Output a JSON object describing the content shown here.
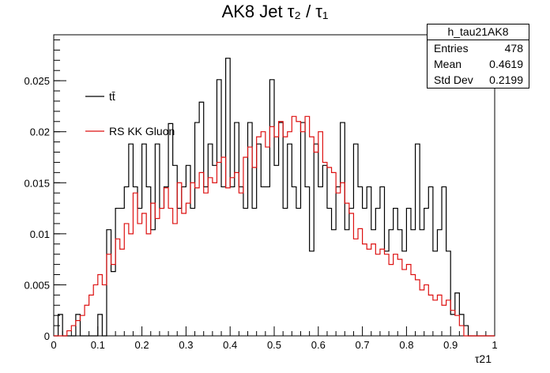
{
  "title": "AK8 Jet  τ₂ / τ₁",
  "stats": {
    "name": "h_tau21AK8",
    "rows": [
      {
        "key": "Entries",
        "value": "478"
      },
      {
        "key": "Mean",
        "value": "0.4619"
      },
      {
        "key": "Std Dev",
        "value": "0.2199"
      }
    ]
  },
  "chart_data": {
    "type": "line",
    "title": "AK8 Jet  τ₂ / τ₁",
    "xlabel": "τ21",
    "ylabel": "",
    "xlim": [
      0,
      1
    ],
    "ylim": [
      0,
      0.0295
    ],
    "xticks": [
      "0",
      "0.1",
      "0.2",
      "0.3",
      "0.4",
      "0.5",
      "0.6",
      "0.7",
      "0.8",
      "0.9",
      "1"
    ],
    "yticks": [
      "0",
      "0.005",
      "0.01",
      "0.015",
      "0.02",
      "0.025"
    ],
    "legend": "top-left",
    "series": [
      {
        "name": "tt̄",
        "color": "#000000",
        "x": [
          0.0,
          0.01,
          0.02,
          0.03,
          0.04,
          0.05,
          0.06,
          0.07,
          0.08,
          0.09,
          0.1,
          0.11,
          0.12,
          0.13,
          0.14,
          0.15,
          0.16,
          0.17,
          0.18,
          0.19,
          0.2,
          0.21,
          0.22,
          0.23,
          0.24,
          0.25,
          0.26,
          0.27,
          0.28,
          0.29,
          0.3,
          0.31,
          0.32,
          0.33,
          0.34,
          0.35,
          0.36,
          0.37,
          0.38,
          0.39,
          0.4,
          0.41,
          0.42,
          0.43,
          0.44,
          0.45,
          0.46,
          0.47,
          0.48,
          0.49,
          0.5,
          0.51,
          0.52,
          0.53,
          0.54,
          0.55,
          0.56,
          0.57,
          0.58,
          0.59,
          0.6,
          0.61,
          0.62,
          0.63,
          0.64,
          0.65,
          0.66,
          0.67,
          0.68,
          0.69,
          0.7,
          0.71,
          0.72,
          0.73,
          0.74,
          0.75,
          0.76,
          0.77,
          0.78,
          0.79,
          0.8,
          0.81,
          0.82,
          0.83,
          0.84,
          0.85,
          0.86,
          0.87,
          0.88,
          0.89,
          0.9,
          0.91,
          0.92,
          0.93,
          0.94,
          0.95,
          0.96,
          0.97,
          0.98,
          0.99
        ],
        "values": [
          0,
          0.0021,
          0,
          0,
          0,
          0.0021,
          0,
          0,
          0,
          0,
          0.0021,
          0.0,
          0.0104,
          0.0063,
          0.0125,
          0.0125,
          0.0146,
          0.0188,
          0.0146,
          0.0125,
          0.0188,
          0.0146,
          0.0104,
          0.0188,
          0.0125,
          0.0146,
          0.0208,
          0.0167,
          0.0125,
          0.0146,
          0.0167,
          0.0125,
          0.0209,
          0.0229,
          0.0146,
          0.0188,
          0.0167,
          0.0251,
          0.0146,
          0.0272,
          0.0146,
          0.0209,
          0.0146,
          0.0125,
          0.0209,
          0.0125,
          0.0188,
          0.0146,
          0.0146,
          0.0251,
          0.0167,
          0.0209,
          0.0125,
          0.0188,
          0.0146,
          0.0125,
          0.0209,
          0.0146,
          0.0083,
          0.0188,
          0.0146,
          0.0167,
          0.0125,
          0.0104,
          0.0146,
          0.0209,
          0.0104,
          0.0125,
          0.0188,
          0.0146,
          0.0125,
          0.0146,
          0.0104,
          0.0125,
          0.0146,
          0.0083,
          0.0104,
          0.0125,
          0.0104,
          0.0083,
          0.0125,
          0.0104,
          0.0188,
          0.0104,
          0.0125,
          0.0146,
          0.0083,
          0.0104,
          0.0146,
          0.0083,
          0.0021,
          0.0042,
          0.0021,
          0.001,
          0,
          0,
          0,
          0,
          0,
          0
        ]
      },
      {
        "name": "RS KK Gluon",
        "color": "#dd1111",
        "x": [
          0.0,
          0.01,
          0.02,
          0.03,
          0.04,
          0.05,
          0.06,
          0.07,
          0.08,
          0.09,
          0.1,
          0.11,
          0.12,
          0.13,
          0.14,
          0.15,
          0.16,
          0.17,
          0.18,
          0.19,
          0.2,
          0.21,
          0.22,
          0.23,
          0.24,
          0.25,
          0.26,
          0.27,
          0.28,
          0.29,
          0.3,
          0.31,
          0.32,
          0.33,
          0.34,
          0.35,
          0.36,
          0.37,
          0.38,
          0.39,
          0.4,
          0.41,
          0.42,
          0.43,
          0.44,
          0.45,
          0.46,
          0.47,
          0.48,
          0.49,
          0.5,
          0.51,
          0.52,
          0.53,
          0.54,
          0.55,
          0.56,
          0.57,
          0.58,
          0.59,
          0.6,
          0.61,
          0.62,
          0.63,
          0.64,
          0.65,
          0.66,
          0.67,
          0.68,
          0.69,
          0.7,
          0.71,
          0.72,
          0.73,
          0.74,
          0.75,
          0.76,
          0.77,
          0.78,
          0.79,
          0.8,
          0.81,
          0.82,
          0.83,
          0.84,
          0.85,
          0.86,
          0.87,
          0.88,
          0.89,
          0.9,
          0.91,
          0.92,
          0.93,
          0.94,
          0.95,
          0.96,
          0.97,
          0.98,
          0.99
        ],
        "values": [
          0,
          0,
          0,
          0.0005,
          0.001,
          0.0015,
          0.002,
          0.003,
          0.004,
          0.005,
          0.006,
          0.005,
          0.008,
          0.007,
          0.0095,
          0.0085,
          0.011,
          0.01,
          0.014,
          0.011,
          0.012,
          0.01,
          0.013,
          0.0115,
          0.0125,
          0.0145,
          0.0125,
          0.011,
          0.015,
          0.012,
          0.013,
          0.015,
          0.0145,
          0.016,
          0.014,
          0.0155,
          0.015,
          0.017,
          0.0175,
          0.0145,
          0.0155,
          0.016,
          0.014,
          0.0175,
          0.0185,
          0.0165,
          0.0195,
          0.02,
          0.0185,
          0.0205,
          0.0195,
          0.021,
          0.0195,
          0.02,
          0.0215,
          0.021,
          0.02,
          0.0215,
          0.0195,
          0.018,
          0.02,
          0.017,
          0.0165,
          0.016,
          0.014,
          0.015,
          0.013,
          0.012,
          0.0095,
          0.0105,
          0.009,
          0.0085,
          0.009,
          0.008,
          0.0085,
          0.008,
          0.007,
          0.008,
          0.0075,
          0.0065,
          0.007,
          0.006,
          0.0055,
          0.0045,
          0.005,
          0.004,
          0.0035,
          0.004,
          0.003,
          0.0035,
          0.0025,
          0.002,
          0.001,
          0,
          0,
          0,
          0,
          0,
          0,
          0
        ]
      }
    ]
  }
}
